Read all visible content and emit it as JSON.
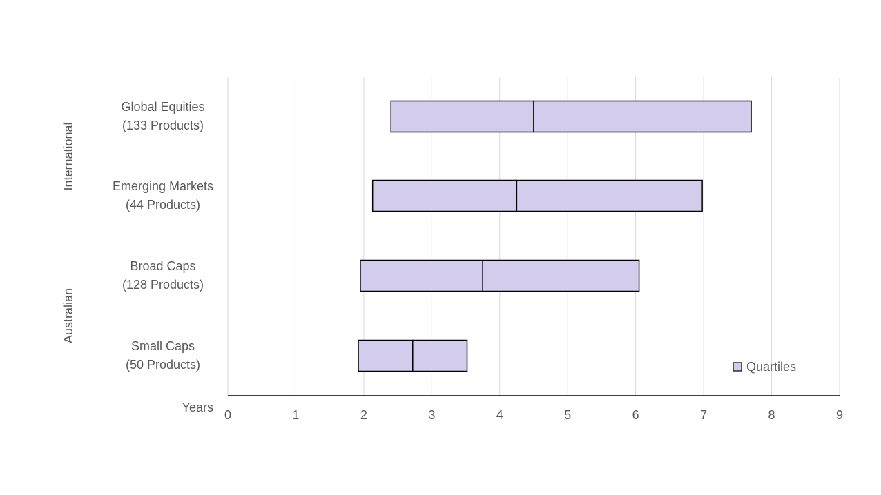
{
  "chart_data": {
    "type": "bar",
    "subtype": "floating-quartile-range",
    "title": "",
    "xlabel": "Years",
    "ylabel": "",
    "xlim": [
      0,
      9
    ],
    "x_ticks": [
      "0",
      "1",
      "2",
      "3",
      "4",
      "5",
      "6",
      "7",
      "8",
      "9"
    ],
    "grid": "vertical",
    "legend": {
      "position": "bottom-right",
      "entries": [
        "Quartiles"
      ]
    },
    "groups": [
      {
        "name": "International",
        "categories": [
          "global",
          "emerging"
        ]
      },
      {
        "name": "Australian",
        "categories": [
          "broad",
          "small"
        ]
      }
    ],
    "categories": [
      {
        "id": "global",
        "line1": "Global Equities",
        "line2": "(133 Products)",
        "q1": 2.4,
        "median": 4.5,
        "q3": 7.7
      },
      {
        "id": "emerging",
        "line1": "Emerging Markets",
        "line2": "(44 Products)",
        "q1": 2.13,
        "median": 4.25,
        "q3": 6.98
      },
      {
        "id": "broad",
        "line1": "Broad Caps",
        "line2": "(128 Products)",
        "q1": 1.95,
        "median": 3.75,
        "q3": 6.05
      },
      {
        "id": "small",
        "line1": "Small Caps",
        "line2": "(50 Products)",
        "q1": 1.92,
        "median": 2.72,
        "q3": 3.52
      }
    ],
    "colors": {
      "bar_fill": "#d3cced",
      "bar_stroke": "#000000",
      "grid": "#d9d9d9",
      "axis": "#000000",
      "text": "#595959"
    }
  }
}
